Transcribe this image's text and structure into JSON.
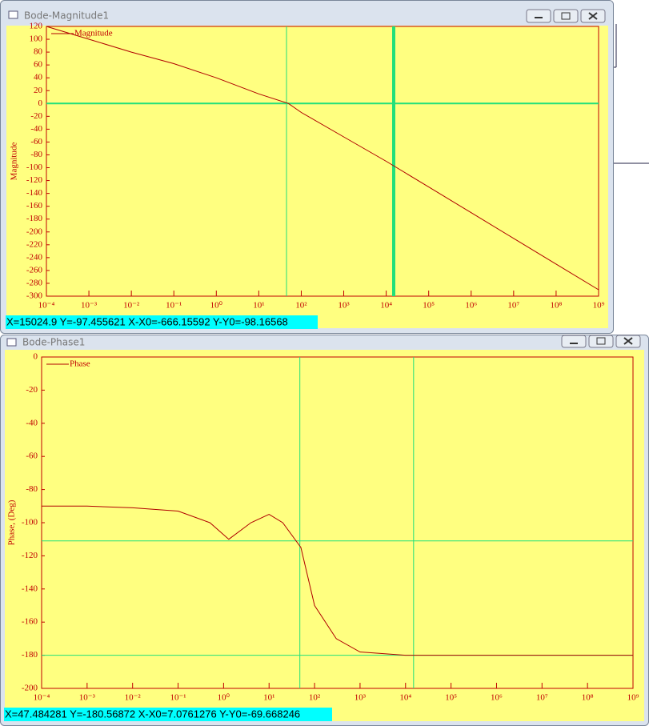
{
  "windows": [
    {
      "title": "Bode-Magnitude1",
      "status": "X=15024.9  Y=-97.455621 X-X0=-666.15592 Y-Y0=-98.16568"
    },
    {
      "title": "Bode-Phase1",
      "status": "X=47.484281  Y=-180.56872 X-X0=7.0761276 Y-Y0=-69.668246"
    }
  ],
  "chart_data": [
    {
      "type": "line",
      "y_label": "Magnitude",
      "log_x": true,
      "x": [
        0.0001,
        0.001,
        0.01,
        0.1,
        1,
        10,
        50,
        100,
        1000,
        10000,
        100000,
        1000000,
        10000000,
        100000000,
        1000000000
      ],
      "series": [
        {
          "name": "Magnitude",
          "color": "#b00000",
          "values": [
            120,
            100,
            80,
            62,
            40,
            15,
            0,
            -14,
            -52,
            -90,
            -130,
            -170,
            -210,
            -250,
            -290
          ]
        }
      ],
      "xlim": [
        0.0001,
        1000000000
      ],
      "ylim": [
        -300,
        120
      ],
      "xticks": [
        {
          "value": 0.0001,
          "label": "10⁻⁴"
        },
        {
          "value": 0.001,
          "label": "10⁻³"
        },
        {
          "value": 0.01,
          "label": "10⁻²"
        },
        {
          "value": 0.1,
          "label": "10⁻¹"
        },
        {
          "value": 1,
          "label": "10⁰"
        },
        {
          "value": 10,
          "label": "10¹"
        },
        {
          "value": 100,
          "label": "10²"
        },
        {
          "value": 1000,
          "label": "10³"
        },
        {
          "value": 10000,
          "label": "10⁴"
        },
        {
          "value": 100000,
          "label": "10⁵"
        },
        {
          "value": 1000000,
          "label": "10⁶"
        },
        {
          "value": 10000000,
          "label": "10⁷"
        },
        {
          "value": 100000000,
          "label": "10⁸"
        },
        {
          "value": 1000000000,
          "label": "10⁹"
        }
      ],
      "yticks": [
        120,
        100,
        80,
        60,
        40,
        20,
        0,
        -20,
        -40,
        -60,
        -80,
        -100,
        -120,
        -140,
        -160,
        -180,
        -200,
        -220,
        -240,
        -260,
        -280,
        -300
      ],
      "cursor_x": [
        45,
        15024.9
      ],
      "cursor_y": [
        0
      ]
    },
    {
      "type": "line",
      "y_label": "Phase, (Deg)",
      "log_x": true,
      "x": [
        0.0001,
        0.001,
        0.01,
        0.1,
        0.5,
        1.3,
        4,
        10,
        20,
        50,
        100,
        300,
        1000,
        10000,
        1000000000
      ],
      "series": [
        {
          "name": "Phase",
          "color": "#b00000",
          "values": [
            -90,
            -90,
            -91,
            -93,
            -100,
            -110,
            -100,
            -95,
            -100,
            -115,
            -150,
            -170,
            -178,
            -180,
            -180
          ]
        }
      ],
      "xlim": [
        0.0001,
        1000000000
      ],
      "ylim": [
        -200,
        0
      ],
      "xticks": [
        {
          "value": 0.0001,
          "label": "10⁻⁴"
        },
        {
          "value": 0.001,
          "label": "10⁻³"
        },
        {
          "value": 0.01,
          "label": "10⁻²"
        },
        {
          "value": 0.1,
          "label": "10⁻¹"
        },
        {
          "value": 1,
          "label": "10⁰"
        },
        {
          "value": 10,
          "label": "10¹"
        },
        {
          "value": 100,
          "label": "10²"
        },
        {
          "value": 1000,
          "label": "10³"
        },
        {
          "value": 10000,
          "label": "10⁴"
        },
        {
          "value": 100000,
          "label": "10⁵"
        },
        {
          "value": 1000000,
          "label": "10⁶"
        },
        {
          "value": 10000000,
          "label": "10⁷"
        },
        {
          "value": 100000000,
          "label": "10⁸"
        },
        {
          "value": 1000000000,
          "label": "10⁹"
        }
      ],
      "yticks": [
        0,
        -20,
        -40,
        -60,
        -80,
        -100,
        -120,
        -140,
        -160,
        -180,
        -200
      ],
      "cursor_x": [
        47.484281,
        15024.9
      ],
      "cursor_y": [
        -111,
        -180
      ]
    }
  ]
}
